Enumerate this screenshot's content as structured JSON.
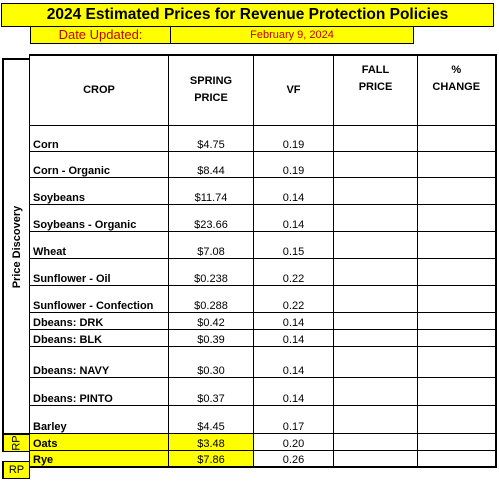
{
  "title": "2024 Estimated Prices for Revenue Protection Policies",
  "date_label": "Date Updated:",
  "date_value": "February 9, 2024",
  "side_label": "Price Discovery",
  "rp_label": "RP",
  "headers": {
    "crop": "CROP",
    "spring_price": "SPRING PRICE",
    "vf": "VF",
    "fall_price_1": "FALL",
    "fall_price_2": "PRICE",
    "pct_1": "%",
    "pct_2": "CHANGE"
  },
  "rows": [
    {
      "crop": "Corn",
      "price": "$4.75",
      "vf": "0.19"
    },
    {
      "crop": "Corn - Organic",
      "price": "$8.44",
      "vf": "0.19"
    },
    {
      "crop": "Soybeans",
      "price": "$11.74",
      "vf": "0.14"
    },
    {
      "crop": "Soybeans - Organic",
      "price": "$23.66",
      "vf": "0.14"
    },
    {
      "crop": "Wheat",
      "price": "$7.08",
      "vf": "0.15"
    },
    {
      "crop": "Sunflower - Oil",
      "price": "$0.238",
      "vf": "0.22"
    },
    {
      "crop": "Sunflower - Confection",
      "price": "$0.288",
      "vf": "0.22"
    },
    {
      "crop": "Dbeans: DRK",
      "price": "$0.42",
      "vf": "0.14"
    },
    {
      "crop": "Dbeans: BLK",
      "price": "$0.39",
      "vf": "0.14"
    },
    {
      "crop": "Dbeans: NAVY",
      "price": "$0.30",
      "vf": "0.14"
    },
    {
      "crop": "Dbeans: PINTO",
      "price": "$0.37",
      "vf": "0.14"
    },
    {
      "crop": "Barley",
      "price": "$4.45",
      "vf": "0.17"
    },
    {
      "crop": "Oats",
      "price": "$3.48",
      "vf": "0.20"
    },
    {
      "crop": "Rye",
      "price": "$7.86",
      "vf": "0.26"
    }
  ]
}
